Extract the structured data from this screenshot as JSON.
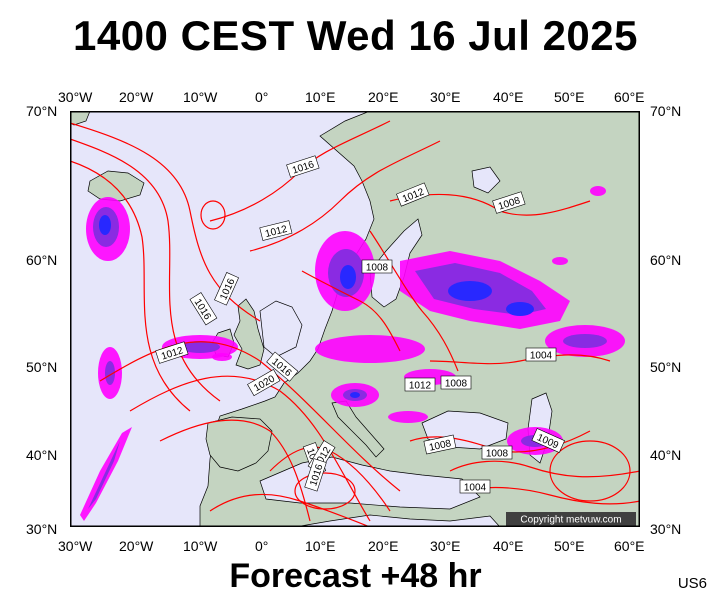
{
  "title": "1400 CEST Wed 16 Jul 2025",
  "footer": "Forecast +48 hr",
  "code": "US6",
  "copyright": "Copyright metvuw.com",
  "lon_labels": [
    "30°W",
    "20°W",
    "10°W",
    "0°",
    "10°E",
    "20°E",
    "30°E",
    "40°E",
    "50°E",
    "60°E"
  ],
  "lat_labels": [
    "70°N",
    "60°N",
    "50°N",
    "40°N",
    "30°N"
  ],
  "pressure_labels": [
    "1016",
    "1012",
    "1008",
    "1016",
    "1016",
    "1016",
    "1012",
    "1008",
    "1012",
    "1020",
    "1016",
    "1012",
    "1008",
    "1004",
    "1008",
    "1009",
    "1008",
    "1004",
    "1012",
    "1016"
  ],
  "colors": {
    "sea": "#e6e6fa",
    "land": "#c4d4c1",
    "isobar": "#ff0000",
    "rain_light": "#ff00ff",
    "rain_mid": "#8a2be2",
    "rain_heavy": "#2828ff"
  }
}
